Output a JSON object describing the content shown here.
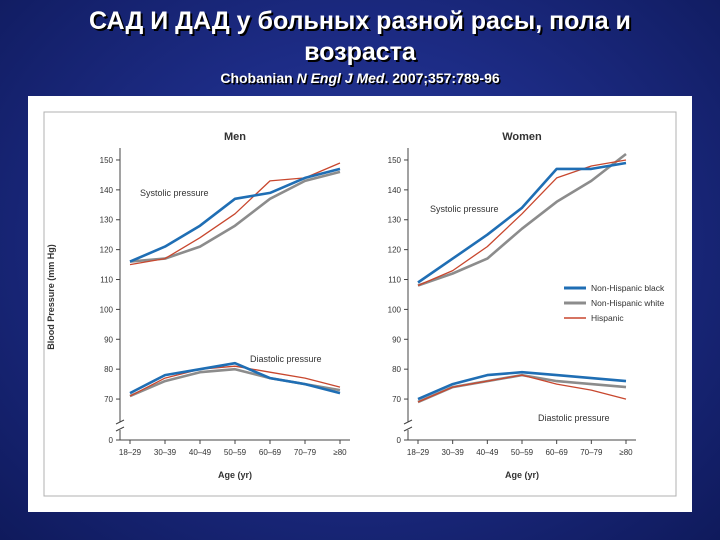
{
  "slide": {
    "title_line1": "САД И ДАД у больных разной расы, пола и",
    "title_line2": "возраста",
    "citation_author": "Chobanian",
    "citation_journal": "N Engl J Med",
    "citation_rest": ". 2007;357:789-96"
  },
  "colors": {
    "Non-Hispanic black": "#1f6eb4",
    "Non-Hispanic white": "#8c8c8c",
    "Hispanic": "#c8472e"
  },
  "chart_data": [
    {
      "type": "line",
      "title": "Men",
      "xlabel": "Age (yr)",
      "ylabel": "Blood Pressure (mm Hg)",
      "categories": [
        "18–29",
        "30–39",
        "40–49",
        "50–59",
        "60–69",
        "70–79",
        "≥80"
      ],
      "y_ticks": [
        0,
        70,
        80,
        90,
        100,
        110,
        120,
        130,
        140,
        150
      ],
      "ylim": [
        65,
        152
      ],
      "axis_break": true,
      "annotations": {
        "systolic": "Systolic pressure",
        "diastolic": "Diastolic pressure"
      },
      "series": [
        {
          "name": "Non-Hispanic black",
          "measure": "systolic",
          "values": [
            116,
            121,
            128,
            137,
            139,
            144,
            147
          ]
        },
        {
          "name": "Non-Hispanic white",
          "measure": "systolic",
          "values": [
            116,
            117,
            121,
            128,
            137,
            143,
            146
          ]
        },
        {
          "name": "Hispanic",
          "measure": "systolic",
          "values": [
            115,
            117,
            124,
            132,
            143,
            144,
            149
          ]
        },
        {
          "name": "Non-Hispanic black",
          "measure": "diastolic",
          "values": [
            72,
            78,
            80,
            82,
            77,
            75,
            72
          ]
        },
        {
          "name": "Non-Hispanic white",
          "measure": "diastolic",
          "values": [
            71,
            76,
            79,
            80,
            77,
            75,
            73
          ]
        },
        {
          "name": "Hispanic",
          "measure": "diastolic",
          "values": [
            71,
            77,
            80,
            81,
            79,
            77,
            74
          ]
        }
      ]
    },
    {
      "type": "line",
      "title": "Women",
      "xlabel": "Age (yr)",
      "categories": [
        "18–29",
        "30–39",
        "40–49",
        "50–59",
        "60–69",
        "70–79",
        "≥80"
      ],
      "y_ticks": [
        0,
        70,
        80,
        90,
        100,
        110,
        120,
        130,
        140,
        150
      ],
      "ylim": [
        65,
        152
      ],
      "axis_break": true,
      "legend": {
        "placement": "right",
        "entries": [
          "Non-Hispanic black",
          "Non-Hispanic white",
          "Hispanic"
        ]
      },
      "annotations": {
        "systolic": "Systolic pressure",
        "diastolic": "Diastolic pressure"
      },
      "series": [
        {
          "name": "Non-Hispanic black",
          "measure": "systolic",
          "values": [
            109,
            117,
            125,
            134,
            147,
            147,
            149
          ]
        },
        {
          "name": "Non-Hispanic white",
          "measure": "systolic",
          "values": [
            108,
            112,
            117,
            127,
            136,
            143,
            152
          ]
        },
        {
          "name": "Hispanic",
          "measure": "systolic",
          "values": [
            108,
            113,
            121,
            132,
            144,
            148,
            150
          ]
        },
        {
          "name": "Non-Hispanic black",
          "measure": "diastolic",
          "values": [
            70,
            75,
            78,
            79,
            78,
            77,
            76
          ]
        },
        {
          "name": "Non-Hispanic white",
          "measure": "diastolic",
          "values": [
            69,
            74,
            76,
            78,
            76,
            75,
            74
          ]
        },
        {
          "name": "Hispanic",
          "measure": "diastolic",
          "values": [
            69,
            74,
            76,
            78,
            75,
            73,
            70
          ]
        }
      ]
    }
  ]
}
